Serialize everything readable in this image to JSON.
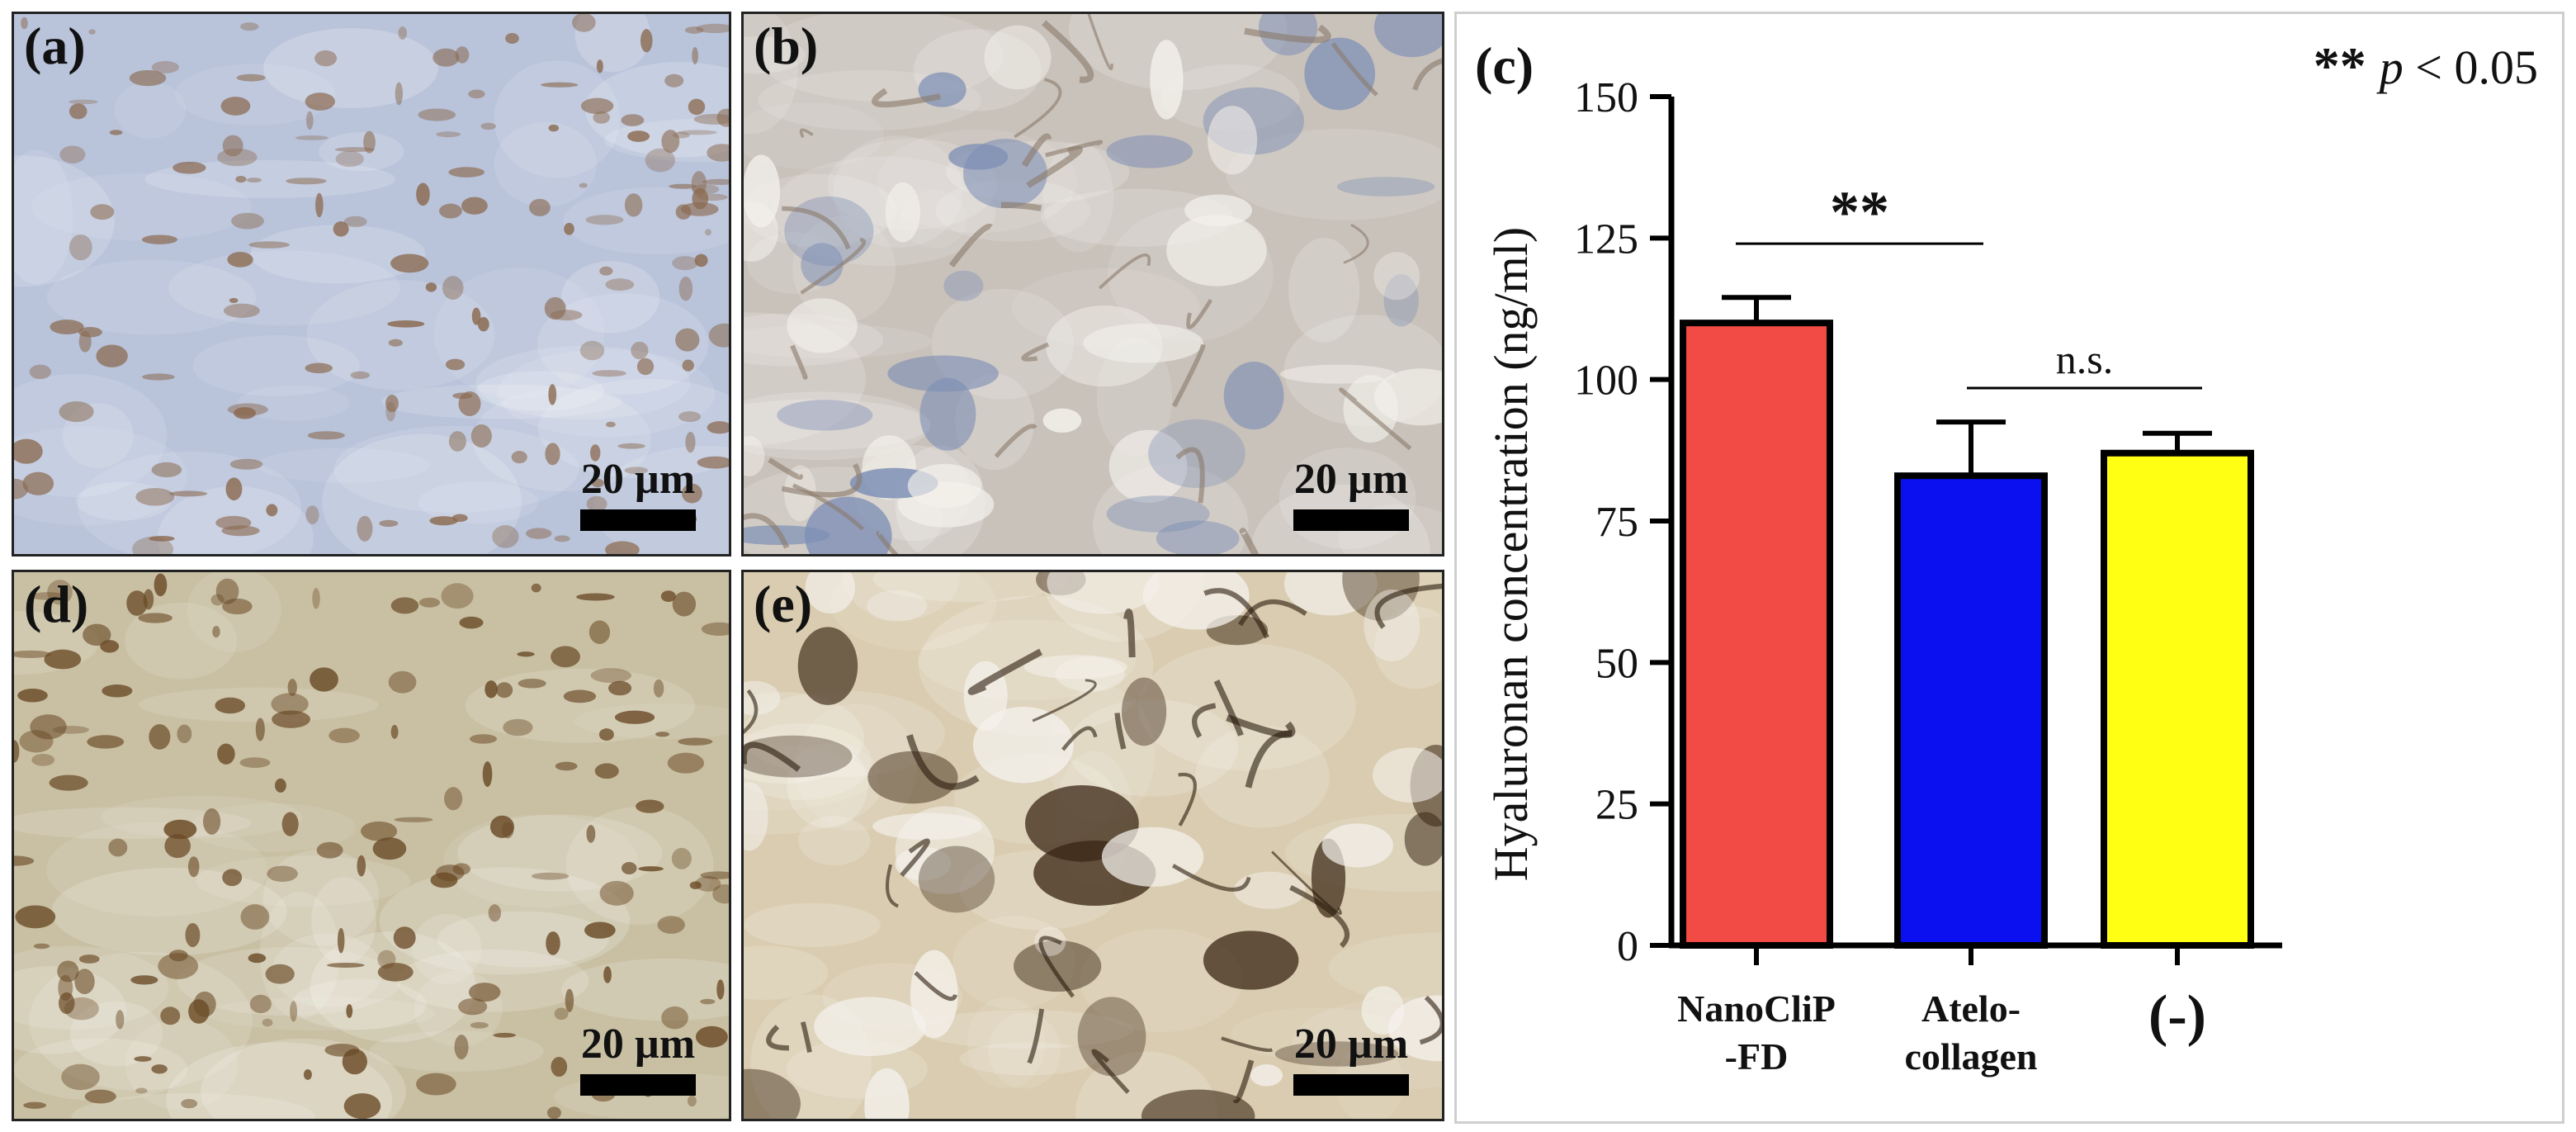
{
  "panels": {
    "a": {
      "label": "(a)",
      "scale": "20 µm",
      "colors": {
        "base": "#b9c3da",
        "blob": "#8b6a50"
      }
    },
    "b": {
      "label": "(b)",
      "scale": "20 µm",
      "colors": {
        "base": "#c9c2bb",
        "blob": "#7d8fb5"
      }
    },
    "d": {
      "label": "(d)",
      "scale": "20 µm",
      "colors": {
        "base": "#c9c0a4",
        "blob": "#6a4a26"
      }
    },
    "e": {
      "label": "(e)",
      "scale": "20 µm",
      "colors": {
        "base": "#d9ccb0",
        "blob": "#3a2614"
      }
    }
  },
  "chart_data": {
    "type": "bar",
    "panel_label": "(c)",
    "categories": [
      "NanoCliP\n-FD",
      "Atelo-\ncollagen",
      "(-)"
    ],
    "values": [
      110,
      83,
      87
    ],
    "errors": [
      4.5,
      9.5,
      3.5
    ],
    "colors": [
      "#f24a44",
      "#0a10f0",
      "#ffff14"
    ],
    "ylabel": "Hyaluronan concentration (ng/ml)",
    "ylim": [
      0,
      150
    ],
    "yticks": [
      0,
      25,
      50,
      75,
      100,
      125,
      150
    ],
    "significance": [
      {
        "from": 0,
        "to": 1,
        "label": "**"
      },
      {
        "from": 1,
        "to": 2,
        "label": "n.s."
      }
    ],
    "legend_marker": "**",
    "legend_text": "p < 0.05"
  }
}
